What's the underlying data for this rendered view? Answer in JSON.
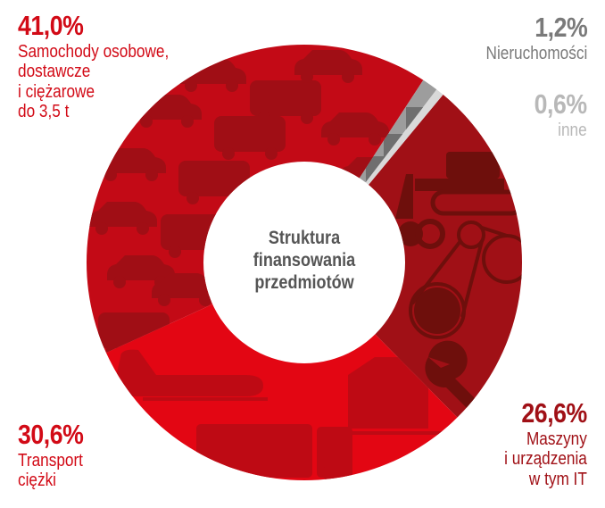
{
  "chart_data": {
    "type": "pie",
    "subtype": "donut",
    "title": "Struktura finansowania przedmiotów",
    "title_lines": [
      "Struktura",
      "finansowania",
      "przedmiotów"
    ],
    "legend_position": "labels around donut",
    "start_angle_deg": 39.6,
    "direction": "clockwise",
    "slices": [
      {
        "id": "maszyny",
        "value": 26.6,
        "value_label": "26,6%",
        "label_lines": [
          "Maszyny",
          "i urządzenia",
          "w tym IT"
        ],
        "color": "#a01016",
        "icon_color": "#6e0f0c",
        "label_color": "#a01016"
      },
      {
        "id": "transport",
        "value": 30.6,
        "value_label": "30,6%",
        "label_lines": [
          "Transport",
          "ciężki"
        ],
        "color": "#e30613",
        "icon_color": "#be0a14",
        "label_color": "#d20a16"
      },
      {
        "id": "samochody",
        "value": 41.0,
        "value_label": "41,0%",
        "label_lines": [
          "Samochody osobowe,",
          "dostawcze",
          "i ciężarowe",
          "do 3,5 t"
        ],
        "color": "#c30a16",
        "icon_color": "#a00e15",
        "label_color": "#d20a16"
      },
      {
        "id": "nieruchomosci",
        "value": 1.2,
        "value_label": "1,2%",
        "label_lines": [
          "Nieruchomości"
        ],
        "color": "#9d9d9d",
        "icon_color": "#6f6f6f",
        "label_color": "#7a7a7a"
      },
      {
        "id": "inne",
        "value": 0.6,
        "value_label": "0,6%",
        "label_lines": [
          "inne"
        ],
        "color": "#d9d9d9",
        "icon_color": "#d9d9d9",
        "label_color": "#b8b8b8"
      }
    ]
  },
  "labels": {
    "samochody": {
      "pct": "41,0%",
      "lines": [
        "Samochody osobowe,",
        "dostawcze",
        "i ciężarowe",
        "do 3,5 t"
      ]
    },
    "nieruchomosci": {
      "pct": "1,2%",
      "lines": [
        "Nieruchomości"
      ]
    },
    "inne": {
      "pct": "0,6%",
      "lines": [
        "inne"
      ]
    },
    "transport": {
      "pct": "30,6%",
      "lines": [
        "Transport",
        "ciężki"
      ]
    },
    "maszyny": {
      "pct": "26,6%",
      "lines": [
        "Maszyny",
        "i urządzenia",
        "w tym IT"
      ]
    }
  },
  "center": {
    "lines": [
      "Struktura",
      "finansowania",
      "przedmiotów"
    ]
  }
}
